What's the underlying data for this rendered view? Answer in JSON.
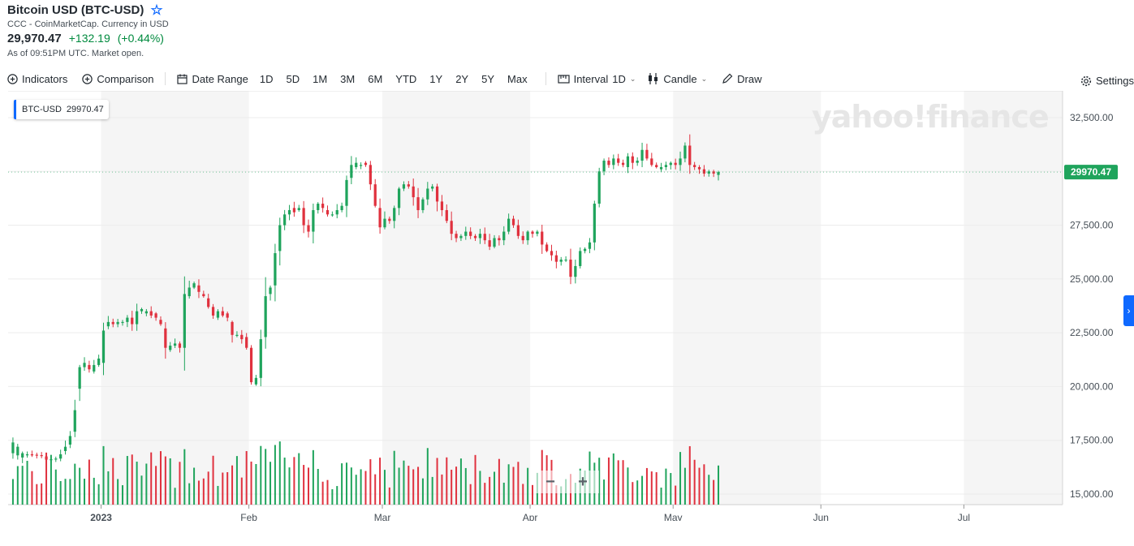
{
  "header": {
    "title": "Bitcoin USD (BTC-USD)",
    "source": "CCC - CoinMarketCap. Currency in USD",
    "price": "29,970.47",
    "change": "+132.19",
    "change_pct": "(+0.44%)",
    "as_of": "As of 09:51PM UTC. Market open."
  },
  "toolbar": {
    "indicators": "Indicators",
    "comparison": "Comparison",
    "date_range": "Date Range",
    "ranges": [
      "1D",
      "5D",
      "1M",
      "3M",
      "6M",
      "YTD",
      "1Y",
      "2Y",
      "5Y",
      "Max"
    ],
    "interval_label": "Interval",
    "interval_value": "1D",
    "chart_type": "Candle",
    "draw": "Draw",
    "settings": "Settings"
  },
  "legend": {
    "symbol": "BTC-USD",
    "value": "29970.47"
  },
  "watermark": "yahoo!finance",
  "zoom": {
    "minus": "−",
    "plus": "+"
  },
  "colors": {
    "up": "#1fa45c",
    "down": "#e0313e",
    "accent": "#0f69ff",
    "band": "#f5f5f5"
  },
  "chart_data": {
    "type": "candlestick",
    "ylim": [
      14500,
      33500
    ],
    "yticks": [
      15000,
      17500,
      20000,
      22500,
      25000,
      27500,
      30000,
      32500
    ],
    "ytick_labels": [
      "15,000.00",
      "17,500.00",
      "20,000.00",
      "22,500.00",
      "25,000.00",
      "27,500.00",
      "",
      "32,500.00"
    ],
    "current_price_label": "29970.47",
    "current_price": 29970.47,
    "xticks": [
      {
        "label": "2023",
        "date": "2023-01-01"
      },
      {
        "label": "Feb",
        "date": "2023-02-01"
      },
      {
        "label": "Mar",
        "date": "2023-03-01"
      },
      {
        "label": "Apr",
        "date": "2023-04-01"
      },
      {
        "label": "May",
        "date": "2023-05-01"
      },
      {
        "label": "Jun",
        "date": "2023-06-01"
      },
      {
        "label": "Jul",
        "date": "2023-07-01"
      }
    ],
    "shaded_months": [
      "2023-01",
      "2023-03",
      "2023-05",
      "2023-07"
    ],
    "start_date": "2022-12-13",
    "anchors": [
      [
        16900,
        17400
      ],
      [
        16800,
        17200
      ],
      [
        16700,
        16900
      ],
      [
        16800,
        16850
      ],
      [
        16850,
        16800
      ],
      [
        16830,
        16820
      ],
      [
        16810,
        16800
      ],
      [
        16750,
        16600
      ],
      [
        16600,
        16620
      ],
      [
        16620,
        16650
      ],
      [
        16650,
        16850
      ],
      [
        17000,
        17200
      ],
      [
        17300,
        17700
      ],
      [
        17900,
        18900
      ],
      [
        19900,
        20900
      ],
      [
        20900,
        21100
      ],
      [
        21000,
        20800
      ],
      [
        20700,
        21000
      ],
      [
        21000,
        21300
      ],
      [
        21100,
        22600
      ],
      [
        22800,
        23000
      ],
      [
        23000,
        22900
      ],
      [
        22900,
        23000
      ],
      [
        23000,
        23000
      ],
      [
        23000,
        23200
      ],
      [
        23200,
        22900
      ],
      [
        22900,
        23500
      ],
      [
        23500,
        23600
      ],
      [
        23400,
        23500
      ],
      [
        23500,
        23300
      ],
      [
        23400,
        23200
      ],
      [
        23100,
        22900
      ],
      [
        22700,
        21800
      ],
      [
        21700,
        21900
      ],
      [
        21900,
        22000
      ],
      [
        22000,
        21800
      ],
      [
        21800,
        24300
      ],
      [
        24200,
        24600
      ],
      [
        24600,
        24800
      ],
      [
        24700,
        24400
      ],
      [
        24300,
        24200
      ],
      [
        24100,
        23700
      ],
      [
        23700,
        23300
      ],
      [
        23200,
        23500
      ],
      [
        23500,
        23300
      ],
      [
        23400,
        23200
      ],
      [
        23000,
        22400
      ],
      [
        22400,
        22400
      ],
      [
        22400,
        22200
      ],
      [
        22300,
        21800
      ],
      [
        21800,
        20200
      ],
      [
        20100,
        20400
      ],
      [
        20400,
        22200
      ],
      [
        22300,
        24200
      ],
      [
        24300,
        24600
      ],
      [
        24700,
        26200
      ],
      [
        26300,
        27500
      ],
      [
        27500,
        28000
      ],
      [
        28000,
        28200
      ],
      [
        28300,
        28100
      ],
      [
        28200,
        28300
      ],
      [
        28300,
        27500
      ],
      [
        27500,
        27200
      ],
      [
        27200,
        28200
      ],
      [
        28200,
        28500
      ],
      [
        28500,
        28300
      ],
      [
        28200,
        28000
      ],
      [
        28000,
        28000
      ],
      [
        28000,
        28200
      ],
      [
        28200,
        28400
      ],
      [
        28400,
        29600
      ],
      [
        29700,
        30300
      ],
      [
        30200,
        30400
      ],
      [
        30300,
        30300
      ],
      [
        30400,
        30300
      ],
      [
        30300,
        29400
      ],
      [
        29400,
        28400
      ],
      [
        28300,
        27400
      ],
      [
        27400,
        27800
      ],
      [
        27800,
        27700
      ],
      [
        27700,
        28300
      ],
      [
        28300,
        29200
      ],
      [
        29200,
        29400
      ],
      [
        29400,
        29300
      ],
      [
        29300,
        28800
      ],
      [
        28800,
        28200
      ],
      [
        28200,
        28700
      ],
      [
        28700,
        29200
      ],
      [
        29200,
        29300
      ],
      [
        29300,
        28600
      ],
      [
        28600,
        28200
      ],
      [
        28200,
        27700
      ],
      [
        27700,
        27100
      ],
      [
        27100,
        26900
      ],
      [
        26900,
        27000
      ],
      [
        27000,
        27200
      ],
      [
        27200,
        27000
      ],
      [
        27000,
        26900
      ],
      [
        26900,
        27100
      ],
      [
        27100,
        26800
      ],
      [
        26800,
        26500
      ],
      [
        26500,
        26900
      ],
      [
        26900,
        26800
      ],
      [
        26800,
        27200
      ],
      [
        27200,
        27800
      ],
      [
        27800,
        27500
      ],
      [
        27500,
        27000
      ],
      [
        27000,
        26800
      ],
      [
        26800,
        27200
      ],
      [
        27200,
        27100
      ],
      [
        27100,
        27200
      ],
      [
        27200,
        26600
      ],
      [
        26600,
        26300
      ],
      [
        26300,
        26100
      ],
      [
        26100,
        25800
      ],
      [
        25800,
        25900
      ],
      [
        25900,
        25900
      ],
      [
        25900,
        25100
      ],
      [
        25100,
        25600
      ],
      [
        25600,
        26300
      ],
      [
        26300,
        26400
      ],
      [
        26400,
        26700
      ],
      [
        26700,
        28500
      ],
      [
        28500,
        30000
      ],
      [
        30000,
        30500
      ],
      [
        30500,
        30300
      ],
      [
        30300,
        30600
      ],
      [
        30600,
        30400
      ],
      [
        30400,
        30300
      ],
      [
        30200,
        30700
      ],
      [
        30700,
        30400
      ],
      [
        30400,
        30500
      ],
      [
        30500,
        31000
      ],
      [
        31000,
        30600
      ],
      [
        30600,
        30300
      ],
      [
        30300,
        30200
      ],
      [
        30100,
        30200
      ],
      [
        30200,
        30300
      ],
      [
        30300,
        30400
      ],
      [
        30400,
        30300
      ],
      [
        30300,
        30600
      ],
      [
        30600,
        31200
      ],
      [
        31200,
        30300
      ],
      [
        30300,
        30200
      ],
      [
        30200,
        30100
      ],
      [
        30100,
        29900
      ],
      [
        29900,
        30000
      ],
      [
        30000,
        29900
      ],
      [
        29838,
        29970
      ]
    ]
  }
}
